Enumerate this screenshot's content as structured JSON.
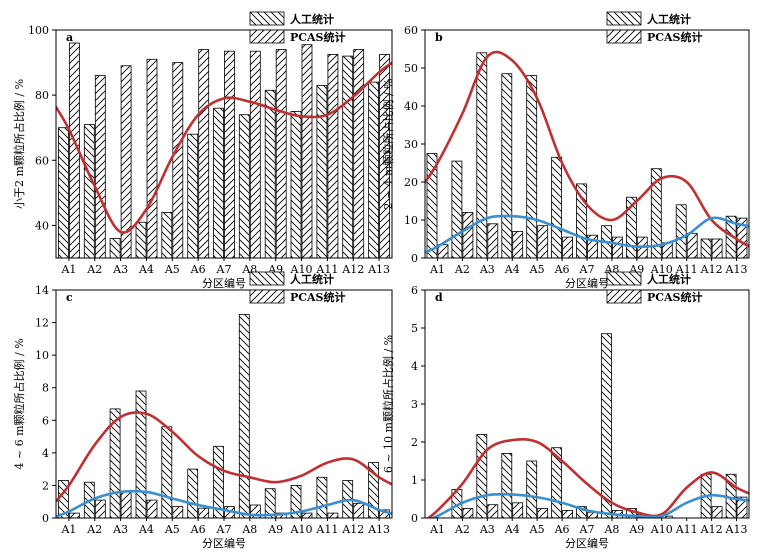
{
  "colors": {
    "curve_red": "#c03030",
    "curve_blue": "#3a8fd0",
    "bar_stroke": "#000000",
    "bar_fill": "#ffffff"
  },
  "chart_data": [
    {
      "type": "bar",
      "panel": "a",
      "categories": [
        "A1",
        "A2",
        "A3",
        "A4",
        "A5",
        "A6",
        "A7",
        "A8",
        "A9",
        "A10",
        "A11",
        "A12",
        "A13"
      ],
      "xlabel": "分区编号",
      "ylabel": "小于2 m颗粒所占比例 / %",
      "ylim": [
        30,
        100
      ],
      "yticks": [
        40,
        60,
        80,
        100
      ],
      "legend": [
        "人工统计",
        "PCAS统计"
      ],
      "legend_position": "top-right",
      "series": [
        {
          "name": "人工统计",
          "pattern": "backslash",
          "values": [
            70,
            71,
            36,
            41,
            44,
            68,
            76,
            74,
            81.5,
            75,
            83,
            92,
            84
          ]
        },
        {
          "name": "PCAS统计",
          "pattern": "slash",
          "values": [
            96,
            86,
            89,
            91,
            90,
            94,
            93.5,
            93.5,
            94,
            95.5,
            92.5,
            94,
            92.5
          ]
        }
      ],
      "curves": [
        {
          "color": "red",
          "values": [
            69.5,
            52,
            38,
            45,
            61,
            74,
            79,
            78,
            75.5,
            73.5,
            74,
            79.5,
            87
          ]
        }
      ]
    },
    {
      "type": "bar",
      "panel": "b",
      "categories": [
        "A1",
        "A2",
        "A3",
        "A4",
        "A5",
        "A6",
        "A7",
        "A8",
        "A9",
        "A10",
        "A11",
        "A12",
        "A13"
      ],
      "xlabel": "分区编号",
      "ylabel": "2 ~ 4 m颗粒所占比例 / %",
      "ylim": [
        0,
        60
      ],
      "yticks": [
        0,
        10,
        20,
        30,
        40,
        50,
        60
      ],
      "legend": [
        "人工统计",
        "PCAS统计"
      ],
      "legend_position": "top-right",
      "series": [
        {
          "name": "人工统计",
          "pattern": "backslash",
          "values": [
            27.5,
            25.5,
            54,
            48.5,
            48,
            26.5,
            19.5,
            8.5,
            16,
            23.5,
            14,
            5,
            11
          ]
        },
        {
          "name": "PCAS统计",
          "pattern": "slash",
          "values": [
            3.5,
            12,
            9,
            7,
            8.5,
            5.5,
            6,
            5.5,
            5.5,
            4,
            6.5,
            5,
            10.5
          ]
        }
      ],
      "curves": [
        {
          "color": "red",
          "values": [
            25,
            38,
            53,
            52,
            42,
            25,
            14,
            10,
            15,
            21,
            20,
            10,
            5
          ]
        },
        {
          "color": "blue",
          "values": [
            3,
            7,
            10.5,
            11,
            10,
            7.5,
            5,
            4,
            3,
            3.5,
            6,
            10.5,
            9
          ]
        }
      ]
    },
    {
      "type": "bar",
      "panel": "c",
      "categories": [
        "A1",
        "A2",
        "A3",
        "A4",
        "A5",
        "A6",
        "A7",
        "A8",
        "A9",
        "A10",
        "A11",
        "A12",
        "A13"
      ],
      "xlabel": "分区编号",
      "ylabel": "4 ~ 6 m颗粒所占比例 / %",
      "ylim": [
        0,
        14
      ],
      "yticks": [
        0,
        2,
        4,
        6,
        8,
        10,
        12,
        14
      ],
      "legend": [
        "人工统计",
        "PCAS统计"
      ],
      "legend_position": "top-right",
      "series": [
        {
          "name": "人工统计",
          "pattern": "backslash",
          "values": [
            2.3,
            2.2,
            6.7,
            7.8,
            5.6,
            3,
            4.4,
            12.5,
            1.8,
            2,
            2.5,
            2.3,
            3.4
          ]
        },
        {
          "name": "PCAS统计",
          "pattern": "slash",
          "values": [
            0.3,
            1.1,
            1.6,
            1.1,
            0.7,
            0.6,
            0.7,
            0.8,
            0.3,
            0.3,
            0.3,
            0.9,
            0.5
          ]
        }
      ],
      "curves": [
        {
          "color": "red",
          "values": [
            2,
            4.5,
            6.2,
            6.4,
            5.3,
            3.8,
            2.9,
            2.5,
            2.2,
            2.6,
            3.4,
            3.6,
            2.5
          ]
        },
        {
          "color": "blue",
          "values": [
            0.4,
            1.2,
            1.6,
            1.6,
            1.2,
            0.8,
            0.5,
            0.2,
            0.2,
            0.4,
            0.8,
            1.1,
            0.5
          ]
        }
      ]
    },
    {
      "type": "bar",
      "panel": "d",
      "categories": [
        "A1",
        "A2",
        "A3",
        "A4",
        "A5",
        "A6",
        "A7",
        "A8",
        "A9",
        "A10",
        "A11",
        "A12",
        "A13"
      ],
      "xlabel": "分区编号",
      "ylabel": "6 ~ 10 m颗粒所占比例 / %",
      "ylim": [
        0,
        6
      ],
      "yticks": [
        0,
        1,
        2,
        3,
        4,
        5,
        6
      ],
      "legend": [
        "人工统计",
        "PCAS统计"
      ],
      "legend_position": "top-right",
      "series": [
        {
          "name": "人工统计",
          "pattern": "backslash",
          "values": [
            0,
            0.75,
            2.2,
            1.7,
            1.5,
            1.85,
            0.3,
            4.85,
            0.25,
            0.05,
            0,
            1.15,
            1.15
          ]
        },
        {
          "name": "PCAS统计",
          "pattern": "slash",
          "values": [
            0,
            0.25,
            0.35,
            0.4,
            0.25,
            0.2,
            0.15,
            0.2,
            0.1,
            0.05,
            0,
            0.3,
            0.55
          ]
        }
      ],
      "curves": [
        {
          "color": "red",
          "values": [
            0.2,
            0.9,
            1.8,
            2.05,
            2.0,
            1.5,
            0.9,
            0.4,
            0.15,
            0.1,
            0.8,
            1.2,
            0.8
          ]
        },
        {
          "color": "blue",
          "values": [
            0.05,
            0.4,
            0.6,
            0.62,
            0.55,
            0.4,
            0.2,
            0.1,
            0.05,
            0.05,
            0.4,
            0.6,
            0.5
          ]
        }
      ]
    }
  ]
}
